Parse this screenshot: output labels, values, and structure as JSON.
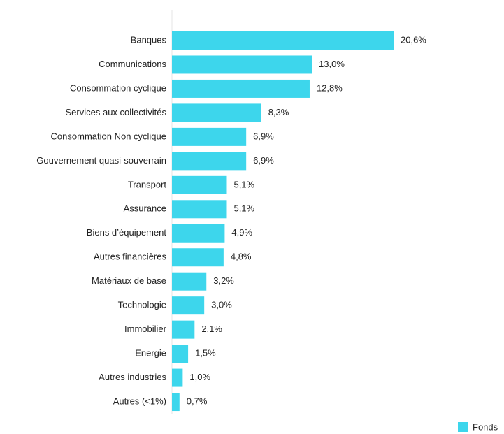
{
  "chart_data": {
    "type": "bar",
    "orientation": "horizontal",
    "categories": [
      "Banques",
      "Communications",
      "Consommation cyclique",
      "Services aux collectivités",
      "Consommation Non cyclique",
      "Gouvernement quasi-souverrain",
      "Transport",
      "Assurance",
      "Biens d’équipement",
      "Autres financières",
      "Matériaux de base",
      "Technologie",
      "Immobilier",
      "Energie",
      "Autres industries",
      "Autres (<1%)"
    ],
    "series": [
      {
        "name": "Fonds",
        "color": "#3dd6ec",
        "values": [
          20.6,
          13.0,
          12.8,
          8.3,
          6.9,
          6.9,
          5.1,
          5.1,
          4.9,
          4.8,
          3.2,
          3.0,
          2.1,
          1.5,
          1.0,
          0.7
        ],
        "value_labels": [
          "20,6%",
          "13,0%",
          "12,8%",
          "8,3%",
          "6,9%",
          "6,9%",
          "5,1%",
          "5,1%",
          "4,9%",
          "4,8%",
          "3,2%",
          "3,0%",
          "2,1%",
          "1,5%",
          "1,0%",
          "0,7%"
        ]
      }
    ],
    "legend": "bottom-right"
  }
}
